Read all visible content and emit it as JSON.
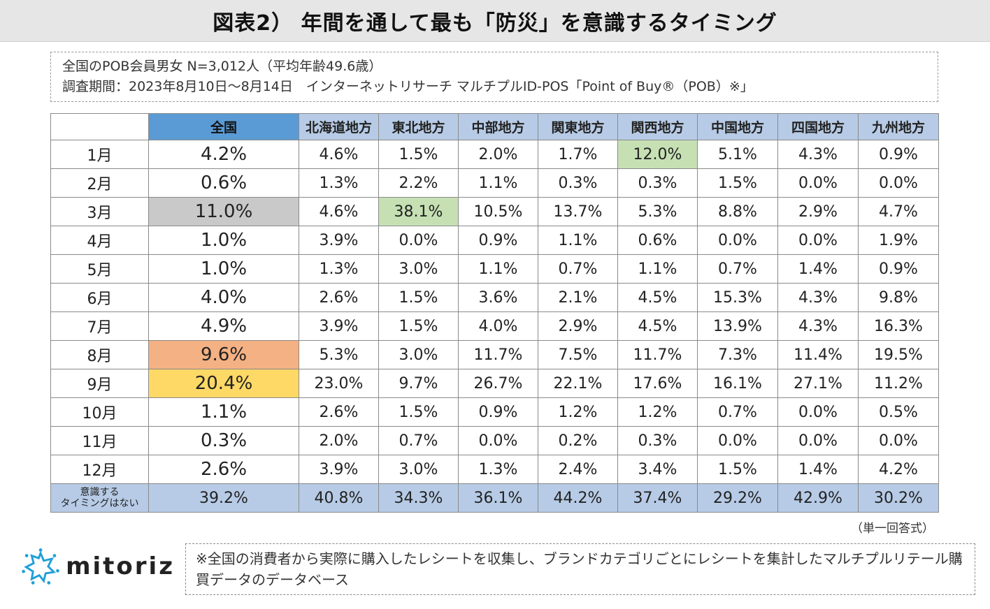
{
  "title": "図表2） 年間を通して最も「防災」を意識するタイミング",
  "info": {
    "line1": "全国のPOB会員男女 N=3,012人（平均年齢49.6歳）",
    "line2": "調査期間：2023年8月10日～8月14日　インターネットリサーチ マルチプルID-POS「Point of Buy®（POB）※」"
  },
  "table": {
    "headers": [
      "全国",
      "北海道地方",
      "東北地方",
      "中部地方",
      "関東地方",
      "関西地方",
      "中国地方",
      "四国地方",
      "九州地方"
    ],
    "rows": [
      {
        "label": "1月",
        "values": [
          "4.2%",
          "4.6%",
          "1.5%",
          "2.0%",
          "1.7%",
          "12.0%",
          "5.1%",
          "4.3%",
          "0.9%"
        ]
      },
      {
        "label": "2月",
        "values": [
          "0.6%",
          "1.3%",
          "2.2%",
          "1.1%",
          "0.3%",
          "0.3%",
          "1.5%",
          "0.0%",
          "0.0%"
        ]
      },
      {
        "label": "3月",
        "values": [
          "11.0%",
          "4.6%",
          "38.1%",
          "10.5%",
          "13.7%",
          "5.3%",
          "8.8%",
          "2.9%",
          "4.7%"
        ]
      },
      {
        "label": "4月",
        "values": [
          "1.0%",
          "3.9%",
          "0.0%",
          "0.9%",
          "1.1%",
          "0.6%",
          "0.0%",
          "0.0%",
          "1.9%"
        ]
      },
      {
        "label": "5月",
        "values": [
          "1.0%",
          "1.3%",
          "3.0%",
          "1.1%",
          "0.7%",
          "1.1%",
          "0.7%",
          "1.4%",
          "0.9%"
        ]
      },
      {
        "label": "6月",
        "values": [
          "4.0%",
          "2.6%",
          "1.5%",
          "3.6%",
          "2.1%",
          "4.5%",
          "15.3%",
          "4.3%",
          "9.8%"
        ]
      },
      {
        "label": "7月",
        "values": [
          "4.9%",
          "3.9%",
          "1.5%",
          "4.0%",
          "2.9%",
          "4.5%",
          "13.9%",
          "4.3%",
          "16.3%"
        ]
      },
      {
        "label": "8月",
        "values": [
          "9.6%",
          "5.3%",
          "3.0%",
          "11.7%",
          "7.5%",
          "11.7%",
          "7.3%",
          "11.4%",
          "19.5%"
        ]
      },
      {
        "label": "9月",
        "values": [
          "20.4%",
          "23.0%",
          "9.7%",
          "26.7%",
          "22.1%",
          "17.6%",
          "16.1%",
          "27.1%",
          "11.2%"
        ]
      },
      {
        "label": "10月",
        "values": [
          "1.1%",
          "2.6%",
          "1.5%",
          "0.9%",
          "1.2%",
          "1.2%",
          "0.7%",
          "0.0%",
          "0.5%"
        ]
      },
      {
        "label": "11月",
        "values": [
          "0.3%",
          "2.0%",
          "0.7%",
          "0.0%",
          "0.2%",
          "0.3%",
          "0.0%",
          "0.0%",
          "0.0%"
        ]
      },
      {
        "label": "12月",
        "values": [
          "2.6%",
          "3.9%",
          "3.0%",
          "1.3%",
          "2.4%",
          "3.4%",
          "1.5%",
          "1.4%",
          "4.2%"
        ]
      }
    ],
    "last_row": {
      "label_line1": "意識する",
      "label_line2": "タイミングはない",
      "values": [
        "39.2%",
        "40.8%",
        "34.3%",
        "36.1%",
        "44.2%",
        "37.4%",
        "29.2%",
        "42.9%",
        "30.2%"
      ]
    },
    "highlight_colors": {
      "gray": "#c9c9c9",
      "green": "#c6e0b4",
      "orange": "#f4b183",
      "yellow": "#ffd966",
      "header_blue": "#5b9bd5",
      "header_light": "#b7cbe6"
    }
  },
  "answer_note": "（単一回答式）",
  "logo": {
    "text": "mitoriz",
    "icon": "star-burst-icon"
  },
  "footnote": "※全国の消費者から実際に購入したレシートを収集し、ブランドカテゴリごとにレシートを集計したマルチプルリテール購買データのデータベース"
}
